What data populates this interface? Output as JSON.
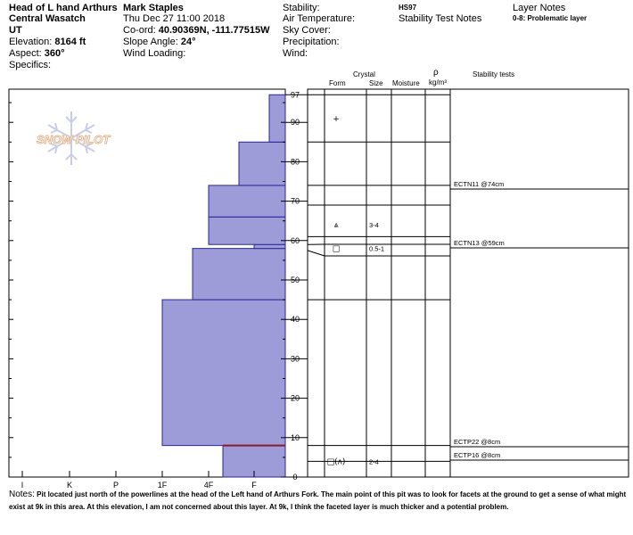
{
  "header": {
    "location": "Head of L hand Arthurs",
    "range": "Central Wasatch",
    "state": "UT",
    "elevation_label": "Elevation:",
    "elevation_value": "8164 ft",
    "aspect_label": "Aspect:",
    "aspect_value": "360°",
    "specifics_label": "Specifics:",
    "observer": "Mark Staples",
    "datetime": "Thu Dec 27 11:00 2018",
    "coord_label": "Co-ord:",
    "coord_value": "40.90369N, -111.77515W",
    "slope_label": "Slope Angle:",
    "slope_value": "24°",
    "wind_loading_label": "Wind Loading:",
    "stability_label": "Stability:",
    "air_temp_label": "Air Temperature:",
    "sky_cover_label": "Sky Cover:",
    "precip_label": "Precipitation:",
    "wind_label": "Wind:",
    "hs_value": "HS97",
    "stability_test_notes": "Stability Test Notes",
    "layer_notes": "Layer Notes",
    "problematic_layer": "0-8: Problematic layer"
  },
  "logo_text": "SNOW PILOT",
  "columns": {
    "crystal": "Crystal",
    "form": "Form",
    "size": "Size",
    "moisture": "Moisture",
    "rho": "ρ",
    "density_unit": "kg/m³",
    "stability_tests": "Stability tests"
  },
  "colors": {
    "hardness_fill": "#9d9bd8",
    "hardness_stroke": "#2a2699",
    "problem_line": "#8b1a2a"
  },
  "chart_data": {
    "type": "bar",
    "orientation": "horizontal-step",
    "title": "",
    "y_ticks": [
      0,
      10,
      20,
      30,
      40,
      50,
      60,
      70,
      80,
      90,
      97
    ],
    "ylim": [
      0,
      97
    ],
    "x_ticks": [
      "I",
      "K",
      "P",
      "1F",
      "4F",
      "F"
    ],
    "hardness_layers": [
      {
        "from": 8,
        "to": 45,
        "hardness": "1F"
      },
      {
        "from": 45,
        "to": 58,
        "hardness": "1F+/4F"
      },
      {
        "from": 58,
        "to": 59,
        "hardness": "F"
      },
      {
        "from": 59,
        "to": 66,
        "hardness": "4F"
      },
      {
        "from": 66,
        "to": 74,
        "hardness": "4F"
      },
      {
        "from": 74,
        "to": 85,
        "hardness": "4F-/F"
      },
      {
        "from": 85,
        "to": 97,
        "hardness": "F+"
      },
      {
        "from": 0,
        "to": 8,
        "hardness": "4F-"
      }
    ],
    "layer_boundaries": [
      97,
      85,
      74,
      69,
      61,
      59,
      57.5,
      45,
      8,
      4
    ]
  },
  "crystals": [
    {
      "depth": 91,
      "form": "+",
      "size": ""
    },
    {
      "depth": 64,
      "form": "⩓",
      "size": "3-4"
    },
    {
      "depth": 58,
      "form": "□",
      "size": "0.5-1"
    },
    {
      "depth": 4,
      "form": "□(ʌ)",
      "size": "2-4"
    }
  ],
  "stability_tests": [
    {
      "label": "ECTN11 @74cm",
      "depth": 74
    },
    {
      "label": "ECTN13 @59cm",
      "depth": 59
    },
    {
      "label": "ECTP22 @8cm",
      "depth": 8
    },
    {
      "label": "ECTP16 @8cm",
      "depth": 8
    }
  ],
  "notes_label": "Notes:",
  "notes_text": "Pit located just north of the powerlines at the head of the Left hand of Arthurs Fork. The main point of this pit was to look for facets at the ground to get a sense of what might exist at 9k in this area. At this elevation, I am not concerned about this layer. At 9k, I think the faceted layer is much thicker and a potential problem."
}
